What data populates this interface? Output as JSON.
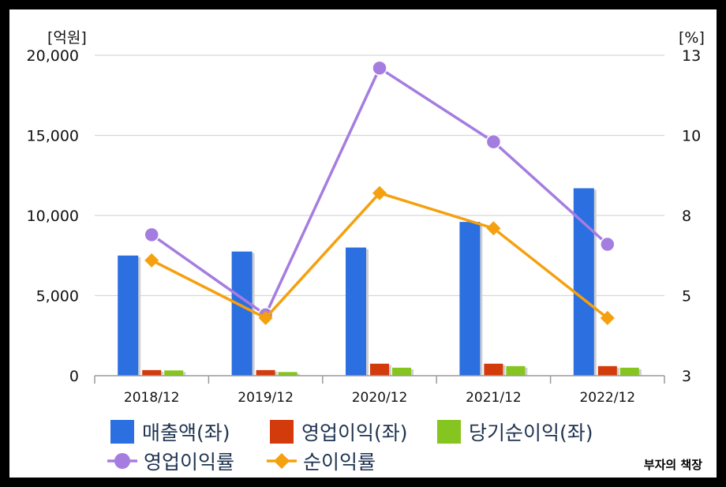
{
  "chart_data": {
    "type": "bar",
    "categories": [
      "2018/12",
      "2019/12",
      "2020/12",
      "2021/12",
      "2022/12"
    ],
    "left_axis": {
      "unit": "[억원]",
      "ylim": [
        0,
        20000
      ],
      "ticks": [
        "0",
        "5,000",
        "10,000",
        "15,000",
        "20,000"
      ]
    },
    "right_axis": {
      "unit": "[%]",
      "ylim": [
        3,
        13
      ],
      "ticks": [
        "3",
        "5",
        "8",
        "10",
        "13"
      ]
    },
    "series": [
      {
        "name": "매출액(좌)",
        "type": "bar",
        "axis": "left",
        "color": "#2b6fe0",
        "values": [
          7500,
          7750,
          8000,
          9600,
          11700
        ]
      },
      {
        "name": "영업이익(좌)",
        "type": "bar",
        "axis": "left",
        "color": "#d33a0c",
        "values": [
          350,
          350,
          750,
          750,
          600
        ]
      },
      {
        "name": "당기순이익(좌)",
        "type": "bar",
        "axis": "left",
        "color": "#86c51f",
        "values": [
          330,
          230,
          500,
          600,
          500
        ]
      },
      {
        "name": "영업이익률",
        "type": "line",
        "axis": "right",
        "color": "#a57de0",
        "marker": "circle",
        "values": [
          7.4,
          4.9,
          12.6,
          10.3,
          7.1
        ]
      },
      {
        "name": "순이익률",
        "type": "line",
        "axis": "right",
        "color": "#f5a00e",
        "marker": "diamond",
        "values": [
          6.6,
          4.8,
          8.7,
          7.6,
          4.8
        ]
      }
    ],
    "grid": true,
    "legend_position": "bottom"
  },
  "watermark": "부자의 책장"
}
